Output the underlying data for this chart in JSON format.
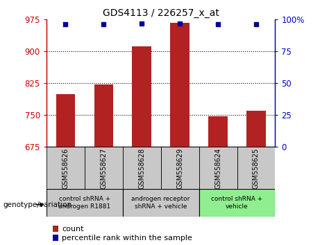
{
  "title": "GDS4113 / 226257_x_at",
  "samples": [
    "GSM558626",
    "GSM558627",
    "GSM558628",
    "GSM558629",
    "GSM558624",
    "GSM558625"
  ],
  "counts": [
    800,
    822,
    912,
    968,
    748,
    760
  ],
  "percentile_ranks": [
    96.5,
    96.5,
    97.0,
    97.0,
    96.5,
    96.5
  ],
  "ylim_left": [
    675,
    975
  ],
  "ylim_right": [
    0,
    100
  ],
  "yticks_left": [
    675,
    750,
    825,
    900,
    975
  ],
  "yticks_right": [
    0,
    25,
    50,
    75,
    100
  ],
  "bar_color": "#B22222",
  "dot_color": "#000099",
  "background_plot": "#FFFFFF",
  "background_label": "#C8C8C8",
  "groups": [
    {
      "label": "control shRNA +\nandrogen R1881",
      "start": 0,
      "end": 2,
      "color": "#C8C8C8"
    },
    {
      "label": "androgen receptor\nshRNA + vehicle",
      "start": 2,
      "end": 4,
      "color": "#C8C8C8"
    },
    {
      "label": "control shRNA +\nvehicle",
      "start": 4,
      "end": 6,
      "color": "#90EE90"
    }
  ],
  "left_axis_color": "#CC0000",
  "right_axis_color": "#0000CC",
  "genotype_label": "genotype/variation",
  "legend_count_label": "count",
  "legend_pct_label": "percentile rank within the sample"
}
